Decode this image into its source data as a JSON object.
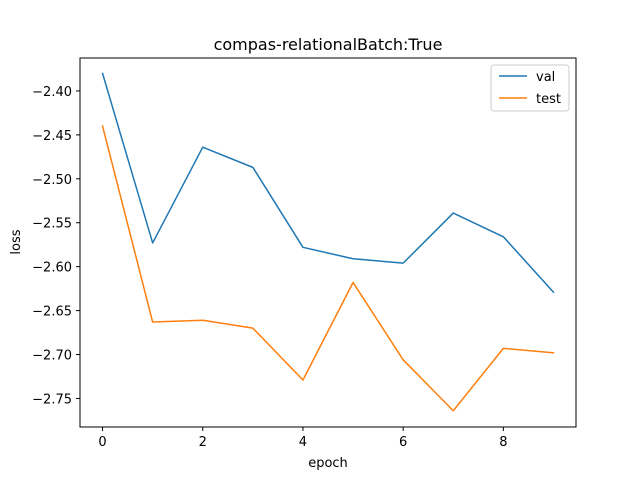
{
  "chart_data": {
    "type": "line",
    "title": "compas-relationalBatch:True",
    "xlabel": "epoch",
    "ylabel": "loss",
    "x": [
      0,
      1,
      2,
      3,
      4,
      5,
      6,
      7,
      8,
      9
    ],
    "xlim": [
      -0.45,
      9.45
    ],
    "ylim": [
      -2.7825,
      -2.3625
    ],
    "xticks": [
      0,
      2,
      4,
      6,
      8
    ],
    "xtick_labels": [
      "0",
      "2",
      "4",
      "6",
      "8"
    ],
    "yticks": [
      -2.4,
      -2.45,
      -2.5,
      -2.55,
      -2.6,
      -2.65,
      -2.7,
      -2.75
    ],
    "ytick_labels": [
      "−2.40",
      "−2.45",
      "−2.50",
      "−2.55",
      "−2.60",
      "−2.65",
      "−2.70",
      "−2.75"
    ],
    "grid": false,
    "legend_position": "top-right",
    "series": [
      {
        "name": "val",
        "color": "#1f77b4",
        "values": [
          -2.38,
          -2.573,
          -2.464,
          -2.487,
          -2.578,
          -2.591,
          -2.596,
          -2.539,
          -2.566,
          -2.629
        ]
      },
      {
        "name": "test",
        "color": "#ff7f0e",
        "values": [
          -2.44,
          -2.663,
          -2.661,
          -2.67,
          -2.729,
          -2.618,
          -2.706,
          -2.764,
          -2.693,
          -2.698
        ]
      }
    ]
  }
}
